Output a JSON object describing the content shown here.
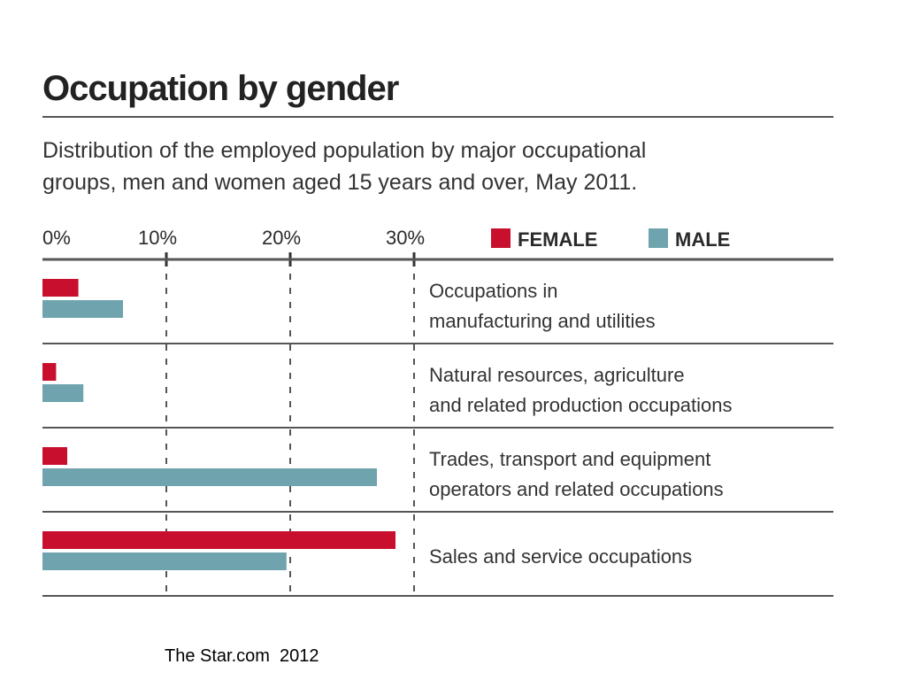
{
  "chart_data": {
    "type": "bar",
    "orientation": "horizontal",
    "title": "Occupation by gender",
    "subtitle_lines": [
      "Distribution of the employed population by major occupational",
      "groups, men and women aged 15 years and over, May 2011."
    ],
    "xlabel": "",
    "ylabel": "",
    "xlim": [
      0,
      30
    ],
    "ticks": [
      0,
      10,
      20,
      30
    ],
    "tick_labels": [
      "0%",
      "10%",
      "20%",
      "30%"
    ],
    "legend_position": "top-right",
    "categories": [
      {
        "line1": "Occupations in",
        "line2": "manufacturing and utilities"
      },
      {
        "line1": "Natural resources, agriculture",
        "line2": "and related production occupations"
      },
      {
        "line1": "Trades, transport and equipment",
        "line2": "operators and related occupations"
      },
      {
        "line1": "Sales and service occupations",
        "line2": ""
      }
    ],
    "series": [
      {
        "name": "FEMALE",
        "color": "#c8102e",
        "values": [
          2.9,
          1.1,
          2.0,
          28.5
        ]
      },
      {
        "name": "MALE",
        "color": "#6fa3ad",
        "values": [
          6.5,
          3.3,
          27.0,
          19.7
        ]
      }
    ]
  },
  "source": "The Star.com  2012"
}
